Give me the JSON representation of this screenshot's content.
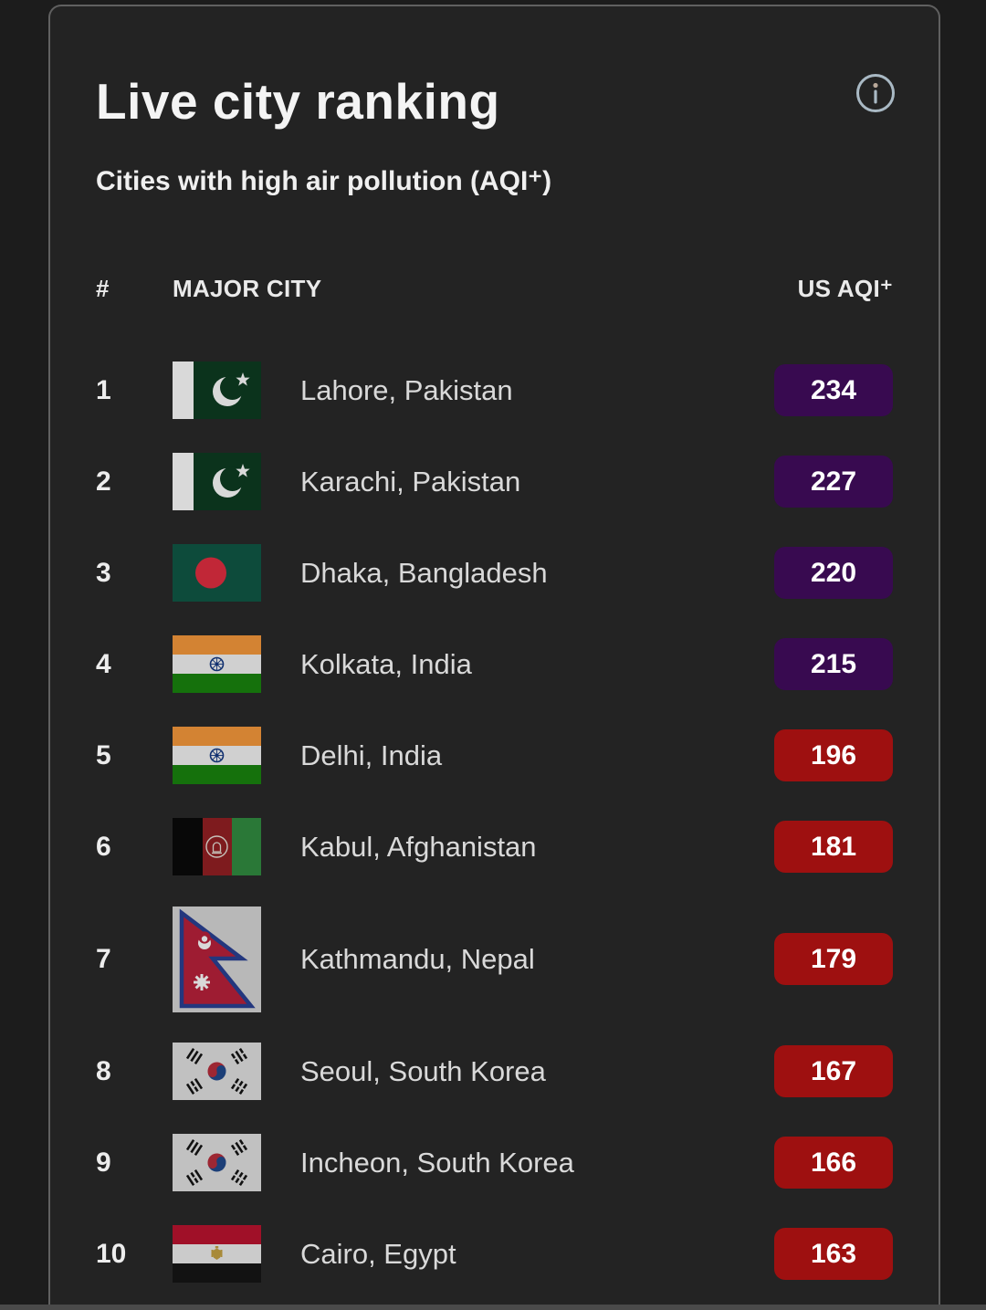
{
  "card": {
    "title": "Live city ranking",
    "subtitle": "Cities with high air pollution (AQI⁺)"
  },
  "info_icon": {
    "name": "info-icon",
    "color": "#a9b9c4"
  },
  "table": {
    "columns": {
      "rank": "#",
      "city": "MAJOR CITY",
      "aqi": "US AQI⁺"
    },
    "rows": [
      {
        "rank": "1",
        "city": "Lahore, Pakistan",
        "aqi": "234",
        "flag": "pakistan",
        "level": "very_unhealthy"
      },
      {
        "rank": "2",
        "city": "Karachi, Pakistan",
        "aqi": "227",
        "flag": "pakistan",
        "level": "very_unhealthy"
      },
      {
        "rank": "3",
        "city": "Dhaka, Bangladesh",
        "aqi": "220",
        "flag": "bangladesh",
        "level": "very_unhealthy"
      },
      {
        "rank": "4",
        "city": "Kolkata, India",
        "aqi": "215",
        "flag": "india",
        "level": "very_unhealthy"
      },
      {
        "rank": "5",
        "city": "Delhi, India",
        "aqi": "196",
        "flag": "india",
        "level": "unhealthy"
      },
      {
        "rank": "6",
        "city": "Kabul, Afghanistan",
        "aqi": "181",
        "flag": "afghanistan",
        "level": "unhealthy"
      },
      {
        "rank": "7",
        "city": "Kathmandu, Nepal",
        "aqi": "179",
        "flag": "nepal",
        "level": "unhealthy",
        "tall": true
      },
      {
        "rank": "8",
        "city": "Seoul, South Korea",
        "aqi": "167",
        "flag": "south-korea",
        "level": "unhealthy"
      },
      {
        "rank": "9",
        "city": "Incheon, South Korea",
        "aqi": "166",
        "flag": "south-korea",
        "level": "unhealthy"
      },
      {
        "rank": "10",
        "city": "Cairo, Egypt",
        "aqi": "163",
        "flag": "egypt",
        "level": "unhealthy"
      }
    ]
  },
  "aqi_colors": {
    "very_unhealthy": "#380a50",
    "unhealthy": "#9e1010"
  }
}
